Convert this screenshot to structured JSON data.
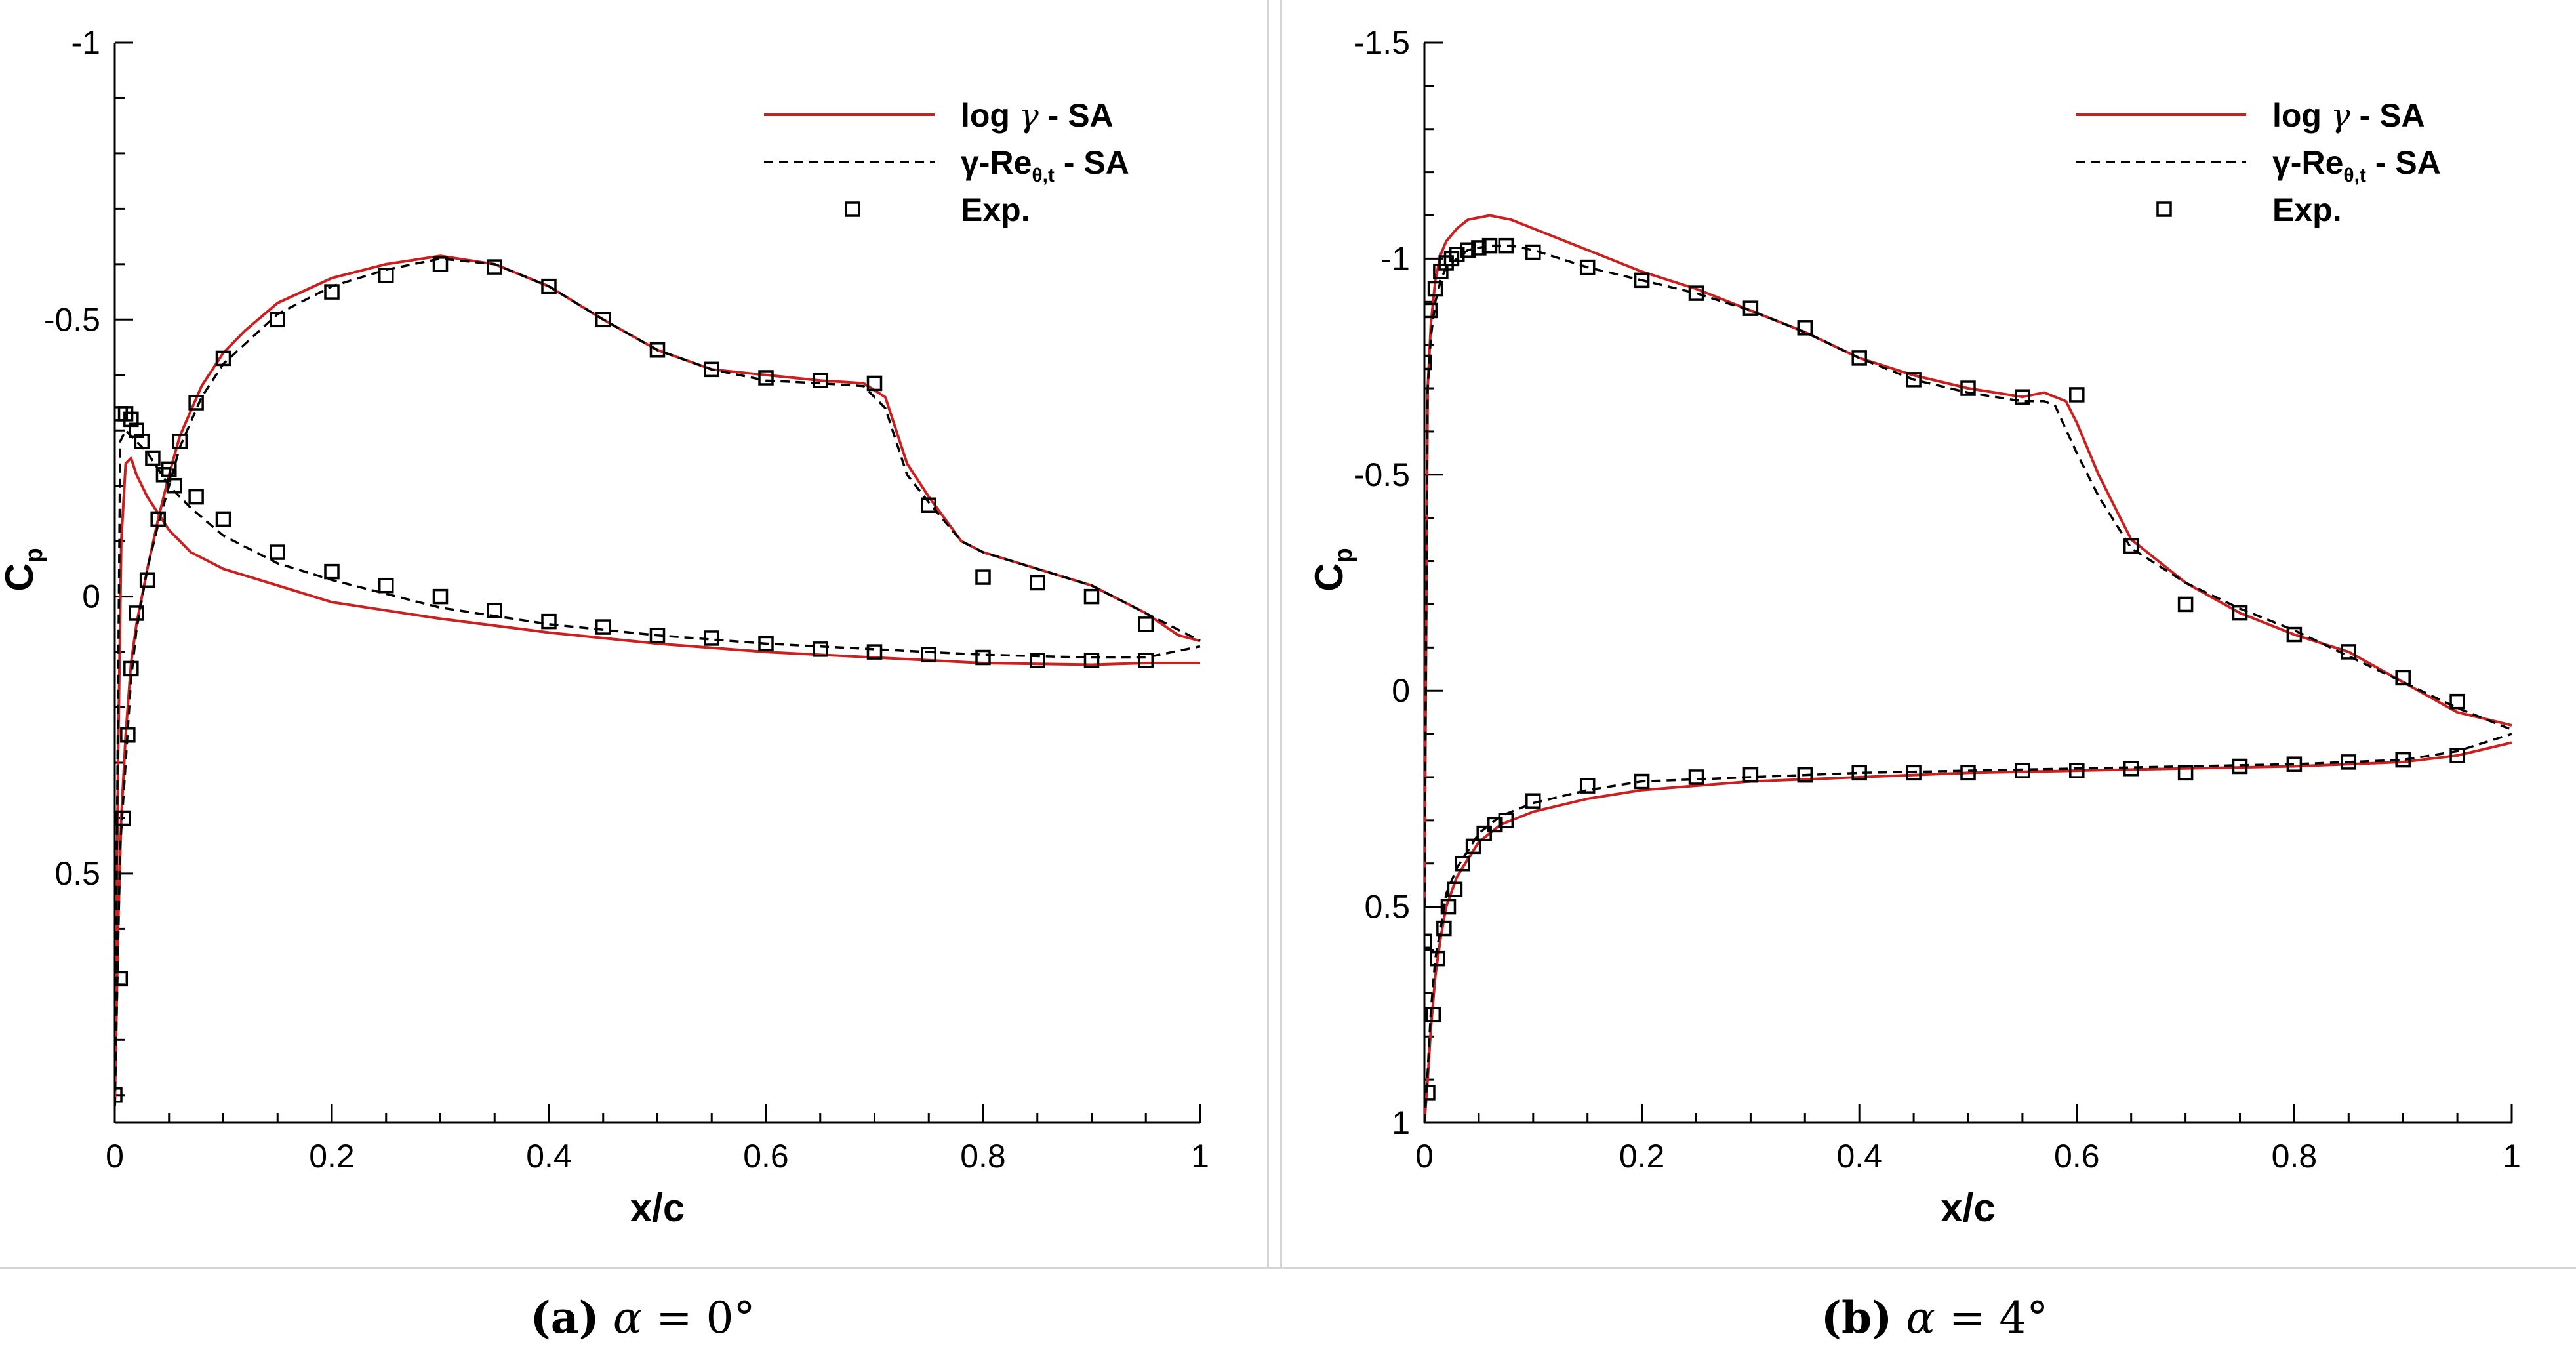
{
  "chart_data": [
    {
      "id": "a",
      "type": "line",
      "xlabel": "x/c",
      "ylabel_main": "C",
      "ylabel_sub": "p",
      "xlim": [
        0,
        1
      ],
      "ylim_top": -1,
      "ylim_bottom": 0.95,
      "xticks": [
        0,
        0.2,
        0.4,
        0.6,
        0.8,
        1
      ],
      "xtick_labels": [
        "0",
        "0.2",
        "0.4",
        "0.6",
        "0.8",
        "1"
      ],
      "yticks": [
        -1,
        -0.5,
        0,
        0.5
      ],
      "ytick_labels": [
        "-1",
        "-0.5",
        "0",
        "0.5"
      ],
      "legend": {
        "position": "top-right",
        "entries": [
          {
            "label_main": "log ",
            "label_greek": "γ",
            "label_rest": " - SA",
            "style": "solid",
            "color": "#cc1f1f"
          },
          {
            "label_main": "γ-Re",
            "label_sub": "θ,t",
            "label_rest": " - SA",
            "style": "dashed",
            "color": "#000000"
          },
          {
            "label_main": "Exp.",
            "style": "marker",
            "color": "#000000"
          }
        ]
      },
      "caption": {
        "letter": "(a)",
        "alpha": "α",
        "rest": " = 0°"
      },
      "series": [
        {
          "name": "log γ - SA (upper)",
          "style": "solid",
          "color": "#cc1f1f",
          "x": [
            0.0,
            0.003,
            0.006,
            0.01,
            0.015,
            0.02,
            0.03,
            0.04,
            0.05,
            0.06,
            0.08,
            0.1,
            0.12,
            0.15,
            0.2,
            0.25,
            0.3,
            0.35,
            0.4,
            0.45,
            0.5,
            0.55,
            0.6,
            0.65,
            0.69,
            0.71,
            0.73,
            0.75,
            0.78,
            0.8,
            0.85,
            0.9,
            0.95,
            0.98,
            1.0
          ],
          "y": [
            0.92,
            0.6,
            0.4,
            0.25,
            0.12,
            0.05,
            -0.05,
            -0.14,
            -0.22,
            -0.29,
            -0.38,
            -0.44,
            -0.48,
            -0.53,
            -0.575,
            -0.6,
            -0.615,
            -0.6,
            -0.56,
            -0.5,
            -0.445,
            -0.41,
            -0.4,
            -0.39,
            -0.385,
            -0.36,
            -0.24,
            -0.18,
            -0.1,
            -0.08,
            -0.05,
            -0.02,
            0.03,
            0.07,
            0.08
          ]
        },
        {
          "name": "log γ - SA (lower)",
          "style": "solid",
          "color": "#cc1f1f",
          "x": [
            0.0,
            0.003,
            0.006,
            0.01,
            0.015,
            0.02,
            0.03,
            0.05,
            0.07,
            0.1,
            0.15,
            0.2,
            0.3,
            0.4,
            0.5,
            0.6,
            0.7,
            0.8,
            0.9,
            0.95,
            1.0
          ],
          "y": [
            0.92,
            0.3,
            -0.1,
            -0.24,
            -0.25,
            -0.22,
            -0.18,
            -0.12,
            -0.08,
            -0.05,
            -0.02,
            0.01,
            0.04,
            0.065,
            0.085,
            0.1,
            0.11,
            0.12,
            0.123,
            0.12,
            0.12
          ]
        },
        {
          "name": "γ-Reθ,t - SA (upper)",
          "style": "dashed",
          "color": "#000000",
          "x": [
            0.0,
            0.005,
            0.01,
            0.015,
            0.02,
            0.03,
            0.04,
            0.05,
            0.06,
            0.08,
            0.1,
            0.15,
            0.2,
            0.25,
            0.3,
            0.35,
            0.4,
            0.45,
            0.5,
            0.55,
            0.6,
            0.65,
            0.69,
            0.71,
            0.73,
            0.75,
            0.78,
            0.8,
            0.85,
            0.9,
            0.95,
            1.0
          ],
          "y": [
            0.92,
            0.45,
            0.3,
            0.15,
            0.06,
            -0.05,
            -0.13,
            -0.2,
            -0.27,
            -0.36,
            -0.42,
            -0.51,
            -0.56,
            -0.59,
            -0.61,
            -0.6,
            -0.56,
            -0.5,
            -0.445,
            -0.41,
            -0.39,
            -0.385,
            -0.38,
            -0.34,
            -0.22,
            -0.17,
            -0.1,
            -0.08,
            -0.05,
            -0.02,
            0.03,
            0.08
          ]
        },
        {
          "name": "γ-Reθ,t - SA (lower)",
          "style": "dashed",
          "color": "#000000",
          "x": [
            0.0,
            0.005,
            0.01,
            0.02,
            0.03,
            0.04,
            0.05,
            0.07,
            0.1,
            0.15,
            0.2,
            0.3,
            0.4,
            0.5,
            0.6,
            0.7,
            0.8,
            0.9,
            0.95,
            1.0
          ],
          "y": [
            0.92,
            -0.28,
            -0.3,
            -0.28,
            -0.26,
            -0.23,
            -0.2,
            -0.16,
            -0.11,
            -0.06,
            -0.03,
            0.02,
            0.05,
            0.07,
            0.085,
            0.095,
            0.105,
            0.11,
            0.11,
            0.09
          ]
        },
        {
          "name": "Exp. (upper)",
          "style": "marker",
          "color": "#000000",
          "x": [
            0.0,
            0.005,
            0.008,
            0.012,
            0.015,
            0.02,
            0.03,
            0.04,
            0.05,
            0.06,
            0.075,
            0.1,
            0.15,
            0.2,
            0.25,
            0.3,
            0.35,
            0.4,
            0.45,
            0.5,
            0.55,
            0.6,
            0.65,
            0.7,
            0.75,
            0.8,
            0.85,
            0.9,
            0.95
          ],
          "y": [
            0.9,
            0.69,
            0.4,
            0.25,
            0.13,
            0.03,
            -0.03,
            -0.14,
            -0.23,
            -0.28,
            -0.35,
            -0.43,
            -0.5,
            -0.55,
            -0.58,
            -0.6,
            -0.595,
            -0.56,
            -0.5,
            -0.445,
            -0.41,
            -0.395,
            -0.39,
            -0.385,
            -0.165,
            -0.035,
            -0.025,
            0.0,
            0.05
          ]
        },
        {
          "name": "Exp. (lower)",
          "style": "marker",
          "color": "#000000",
          "x": [
            0.005,
            0.01,
            0.015,
            0.02,
            0.025,
            0.035,
            0.045,
            0.055,
            0.075,
            0.1,
            0.15,
            0.2,
            0.25,
            0.3,
            0.35,
            0.4,
            0.45,
            0.5,
            0.55,
            0.6,
            0.65,
            0.7,
            0.75,
            0.8,
            0.85,
            0.9,
            0.95
          ],
          "y": [
            -0.33,
            -0.33,
            -0.32,
            -0.3,
            -0.28,
            -0.25,
            -0.22,
            -0.2,
            -0.18,
            -0.14,
            -0.08,
            -0.045,
            -0.02,
            0.0,
            0.025,
            0.045,
            0.055,
            0.07,
            0.075,
            0.085,
            0.095,
            0.1,
            0.105,
            0.11,
            0.115,
            0.115,
            0.115
          ]
        }
      ]
    },
    {
      "id": "b",
      "type": "line",
      "xlabel": "x/c",
      "ylabel_main": "C",
      "ylabel_sub": "p",
      "xlim": [
        0,
        1
      ],
      "ylim_top": -1.5,
      "ylim_bottom": 1,
      "xticks": [
        0,
        0.2,
        0.4,
        0.6,
        0.8,
        1
      ],
      "xtick_labels": [
        "0",
        "0.2",
        "0.4",
        "0.6",
        "0.8",
        "1"
      ],
      "yticks": [
        -1.5,
        -1,
        -0.5,
        0,
        0.5,
        1
      ],
      "ytick_labels": [
        "-1.5",
        "-1",
        "-0.5",
        "0",
        "0.5",
        "1"
      ],
      "legend": {
        "position": "top-right",
        "entries": [
          {
            "label_main": "log ",
            "label_greek": "γ",
            "label_rest": " - SA",
            "style": "solid",
            "color": "#cc1f1f"
          },
          {
            "label_main": "γ-Re",
            "label_sub": "θ,t",
            "label_rest": " - SA",
            "style": "dashed",
            "color": "#000000"
          },
          {
            "label_main": "Exp.",
            "style": "marker",
            "color": "#000000"
          }
        ]
      },
      "caption": {
        "letter": "(b)",
        "alpha": "α",
        "rest": " = 4°"
      },
      "series": [
        {
          "name": "log γ - SA (upper)",
          "style": "solid",
          "color": "#cc1f1f",
          "x": [
            0.0,
            0.003,
            0.006,
            0.01,
            0.015,
            0.02,
            0.03,
            0.04,
            0.06,
            0.08,
            0.1,
            0.15,
            0.2,
            0.25,
            0.3,
            0.35,
            0.4,
            0.45,
            0.5,
            0.55,
            0.57,
            0.59,
            0.6,
            0.62,
            0.65,
            0.7,
            0.75,
            0.8,
            0.85,
            0.9,
            0.95,
            1.0
          ],
          "y": [
            0.5,
            -0.7,
            -0.85,
            -0.95,
            -1.01,
            -1.04,
            -1.07,
            -1.09,
            -1.1,
            -1.09,
            -1.07,
            -1.02,
            -0.97,
            -0.93,
            -0.88,
            -0.83,
            -0.77,
            -0.73,
            -0.7,
            -0.68,
            -0.69,
            -0.67,
            -0.62,
            -0.5,
            -0.35,
            -0.25,
            -0.18,
            -0.13,
            -0.09,
            -0.02,
            0.05,
            0.08
          ]
        },
        {
          "name": "log γ - SA (lower)",
          "style": "solid",
          "color": "#cc1f1f",
          "x": [
            0.0,
            0.003,
            0.006,
            0.01,
            0.015,
            0.02,
            0.03,
            0.05,
            0.07,
            0.1,
            0.15,
            0.2,
            0.3,
            0.4,
            0.5,
            0.6,
            0.7,
            0.8,
            0.9,
            0.95,
            1.0
          ],
          "y": [
            1.0,
            0.9,
            0.78,
            0.66,
            0.57,
            0.5,
            0.43,
            0.35,
            0.31,
            0.28,
            0.25,
            0.23,
            0.21,
            0.2,
            0.19,
            0.185,
            0.18,
            0.175,
            0.165,
            0.15,
            0.12
          ]
        },
        {
          "name": "γ-Reθ,t - SA (upper)",
          "style": "dashed",
          "color": "#000000",
          "x": [
            0.0,
            0.003,
            0.006,
            0.01,
            0.015,
            0.02,
            0.03,
            0.04,
            0.06,
            0.08,
            0.1,
            0.15,
            0.2,
            0.25,
            0.3,
            0.35,
            0.4,
            0.45,
            0.5,
            0.55,
            0.57,
            0.58,
            0.6,
            0.62,
            0.65,
            0.7,
            0.75,
            0.8,
            0.85,
            0.9,
            0.95,
            1.0
          ],
          "y": [
            0.5,
            -0.7,
            -0.82,
            -0.9,
            -0.95,
            -0.98,
            -1.0,
            -1.02,
            -1.03,
            -1.03,
            -1.02,
            -0.98,
            -0.95,
            -0.92,
            -0.88,
            -0.83,
            -0.77,
            -0.72,
            -0.69,
            -0.67,
            -0.67,
            -0.66,
            -0.55,
            -0.45,
            -0.33,
            -0.25,
            -0.19,
            -0.14,
            -0.08,
            -0.02,
            0.04,
            0.09
          ]
        },
        {
          "name": "γ-Reθ,t - SA (lower)",
          "style": "dashed",
          "color": "#000000",
          "x": [
            0.0,
            0.003,
            0.006,
            0.01,
            0.015,
            0.02,
            0.03,
            0.05,
            0.07,
            0.1,
            0.15,
            0.2,
            0.3,
            0.4,
            0.5,
            0.6,
            0.7,
            0.8,
            0.9,
            0.95,
            1.0
          ],
          "y": [
            1.0,
            0.88,
            0.74,
            0.62,
            0.55,
            0.47,
            0.41,
            0.33,
            0.29,
            0.26,
            0.23,
            0.21,
            0.2,
            0.19,
            0.185,
            0.18,
            0.175,
            0.17,
            0.16,
            0.14,
            0.1
          ]
        },
        {
          "name": "Exp. (upper)",
          "style": "marker",
          "color": "#000000",
          "x": [
            0.0,
            0.005,
            0.01,
            0.015,
            0.02,
            0.025,
            0.03,
            0.04,
            0.05,
            0.06,
            0.075,
            0.1,
            0.15,
            0.2,
            0.25,
            0.3,
            0.35,
            0.4,
            0.45,
            0.5,
            0.55,
            0.6,
            0.65,
            0.7,
            0.75,
            0.8,
            0.85,
            0.9,
            0.95
          ],
          "y": [
            -0.76,
            -0.88,
            -0.93,
            -0.97,
            -0.99,
            -1.0,
            -1.01,
            -1.02,
            -1.025,
            -1.03,
            -1.03,
            -1.015,
            -0.98,
            -0.95,
            -0.92,
            -0.885,
            -0.84,
            -0.77,
            -0.72,
            -0.7,
            -0.68,
            -0.685,
            -0.335,
            -0.2,
            -0.18,
            -0.13,
            -0.09,
            -0.03,
            0.025
          ]
        },
        {
          "name": "Exp. (lower)",
          "style": "marker",
          "color": "#000000",
          "x": [
            0.0,
            0.003,
            0.008,
            0.012,
            0.018,
            0.022,
            0.028,
            0.035,
            0.045,
            0.055,
            0.065,
            0.075,
            0.1,
            0.15,
            0.2,
            0.25,
            0.3,
            0.35,
            0.4,
            0.45,
            0.5,
            0.55,
            0.6,
            0.65,
            0.7,
            0.75,
            0.8,
            0.85,
            0.9,
            0.95
          ],
          "y": [
            0.58,
            0.93,
            0.75,
            0.62,
            0.55,
            0.5,
            0.46,
            0.4,
            0.36,
            0.33,
            0.31,
            0.3,
            0.255,
            0.22,
            0.21,
            0.2,
            0.195,
            0.195,
            0.19,
            0.19,
            0.19,
            0.185,
            0.185,
            0.18,
            0.19,
            0.175,
            0.17,
            0.165,
            0.16,
            0.15
          ]
        }
      ]
    }
  ]
}
